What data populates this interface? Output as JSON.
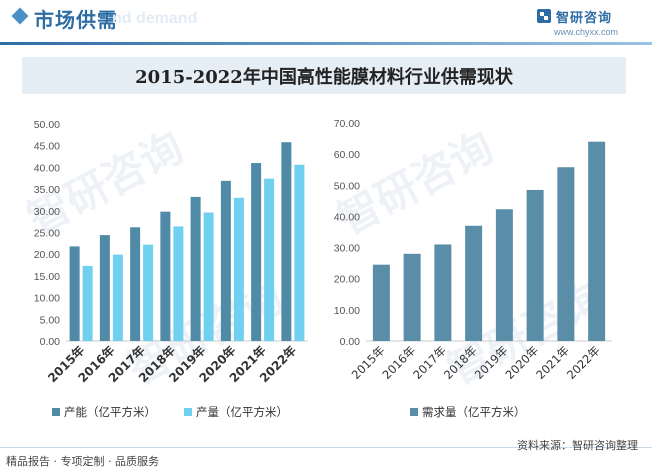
{
  "header": {
    "title": "市场供需",
    "ghost_text": "nd demand",
    "brand_name": "智研咨询",
    "brand_url": "www.chyxx.com"
  },
  "chart_title": "2015-2022年中国高性能膜材料行业供需现状",
  "watermark_text": "智研咨询",
  "chart_data": [
    {
      "type": "bar",
      "categories": [
        "2015年",
        "2016年",
        "2017年",
        "2018年",
        "2019年",
        "2020年",
        "2021年",
        "2022年"
      ],
      "series": [
        {
          "name": "产能（亿平方米）",
          "color": "#4f8aa6",
          "values": [
            21.8,
            24.4,
            26.2,
            29.8,
            33.2,
            36.9,
            41.0,
            45.8
          ]
        },
        {
          "name": "产量（亿平方米）",
          "color": "#6fd0f0",
          "values": [
            17.3,
            19.9,
            22.2,
            26.4,
            29.6,
            33.0,
            37.4,
            40.6
          ]
        }
      ],
      "yticks": [
        "0.00",
        "5.00",
        "10.00",
        "15.00",
        "20.00",
        "25.00",
        "30.00",
        "35.00",
        "40.00",
        "45.00",
        "50.00"
      ],
      "ylim": [
        0,
        50
      ],
      "legend_position": "bottom-left"
    },
    {
      "type": "bar",
      "categories": [
        "2015年",
        "2016年",
        "2017年",
        "2018年",
        "2019年",
        "2020年",
        "2021年",
        "2022年"
      ],
      "series": [
        {
          "name": "需求量（亿平方米）",
          "color": "#5a8ea8",
          "values": [
            24.5,
            28.0,
            31.0,
            37.0,
            42.3,
            48.5,
            55.8,
            64.0
          ]
        }
      ],
      "yticks": [
        "0.00",
        "10.00",
        "20.00",
        "30.00",
        "40.00",
        "50.00",
        "60.00",
        "70.00"
      ],
      "ylim": [
        0,
        70
      ],
      "legend_position": "bottom-left"
    }
  ],
  "footer": {
    "left": "精品报告 · 专项定制 · 品质服务",
    "source": "资料来源：智研咨询整理"
  }
}
